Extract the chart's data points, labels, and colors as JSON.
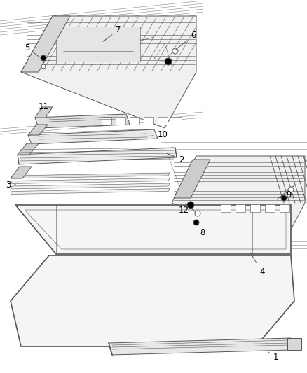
{
  "background_color": "#ffffff",
  "line_color": "#555555",
  "label_color": "#000000",
  "label_fontsize": 8.5,
  "fig_width": 4.38,
  "fig_height": 5.33,
  "dpi": 100
}
